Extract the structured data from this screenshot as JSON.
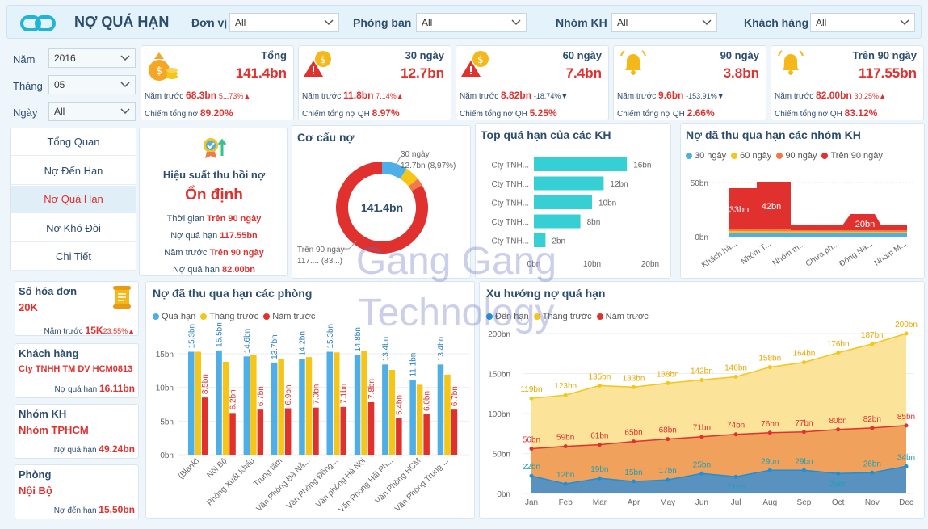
{
  "header": {
    "title": "NỢ QUÁ HẠN",
    "filters": [
      {
        "label": "Đơn vị",
        "value": "All"
      },
      {
        "label": "Phòng ban",
        "value": "All"
      },
      {
        "label": "Nhóm KH",
        "value": "All"
      },
      {
        "label": "Khách hàng",
        "value": "All"
      }
    ]
  },
  "side_filters": [
    {
      "label": "Năm",
      "value": "2016"
    },
    {
      "label": "Tháng",
      "value": "05"
    },
    {
      "label": "Ngày",
      "value": "All"
    }
  ],
  "nav": [
    "Tổng Quan",
    "Nợ Đến Hạn",
    "Nợ Quá Hạn",
    "Nợ Khó Đòi",
    "Chi Tiết"
  ],
  "kpis": [
    {
      "title": "Tổng",
      "value": "141.4bn",
      "prev_label": "Năm trước",
      "prev": "68.3bn",
      "pct": "51.73%",
      "dir": "▲",
      "share_label": "Chiếm tổng nợ",
      "share": "89.20%",
      "icon": "money-bag-icon"
    },
    {
      "title": "30 ngày",
      "value": "12.7bn",
      "prev_label": "Năm trước",
      "prev": "11.8bn",
      "pct": "7.14%",
      "dir": "▲",
      "share_label": "Chiếm tổng nợ QH",
      "share": "8.97%",
      "icon": "coin-warning-icon"
    },
    {
      "title": "60 ngày",
      "value": "7.4bn",
      "prev_label": "Năm trước",
      "prev": "8.82bn",
      "pct": "-18.74%",
      "dir": "▼",
      "share_label": "Chiếm tổng nợ QH",
      "share": "5.25%",
      "icon": "coin-warning-icon"
    },
    {
      "title": "90 ngày",
      "value": "3.8bn",
      "prev_label": "Năm trước",
      "prev": "9.6bn",
      "pct": "-153.91%",
      "dir": "▼",
      "share_label": "Chiếm tổng nợ QH",
      "share": "2.66%",
      "icon": "bell-icon"
    },
    {
      "title": "Trên 90 ngày",
      "value": "117.55bn",
      "prev_label": "Năm trước",
      "prev": "82.00bn",
      "pct": "30.25%",
      "dir": "▲",
      "share_label": "Chiếm tổng nợ QH",
      "share": "83.12%",
      "icon": "bell-icon"
    }
  ],
  "efficiency": {
    "title": "Hiệu suất thu hồi nợ",
    "status": "Ổn định",
    "rows": [
      {
        "label": "Thời gian",
        "value": "Trên 90 ngày"
      },
      {
        "label": "Nợ quá hạn",
        "value": "117.55bn"
      },
      {
        "label": "Năm trước",
        "value": "Trên 90 ngày"
      },
      {
        "label": "Nợ quá hạn",
        "value": "82.00bn"
      }
    ]
  },
  "cards": [
    {
      "title": "Số hóa đơn",
      "value": "20K",
      "sub_label": "Năm trước",
      "sub": "15K",
      "pct": "23.55%▲"
    },
    {
      "title": "Khách hàng",
      "value": "Cty TNHH TM DV HCM0813",
      "sub_label": "Nợ quá hạn",
      "sub": "16.11bn"
    },
    {
      "title": "Nhóm KH",
      "value": "Nhóm TPHCM",
      "sub_label": "Nợ quá hạn",
      "sub": "49.24bn"
    },
    {
      "title": "Phòng",
      "value": "Nội Bộ",
      "sub_label": "Nợ đến hạn",
      "sub": "15.50bn"
    }
  ],
  "watermark": [
    "Gang Gang",
    "Technology"
  ],
  "colors": {
    "blue": "#4daee8",
    "yellow": "#f5c518",
    "orange": "#f07a4a",
    "red": "#e0312e",
    "teal": "#36d0d4",
    "dark_blue": "#1f8fd6"
  },
  "chart_data": [
    {
      "id": "donut",
      "type": "pie",
      "title": "Cơ cấu nợ",
      "center_label": "141.4bn",
      "slices": [
        {
          "name": "30 ngày",
          "value": 12.7,
          "label": "12.7bn (8,97%)"
        },
        {
          "name": "60 ngày",
          "value": 7.4
        },
        {
          "name": "90 ngày",
          "value": 3.8
        },
        {
          "name": "Trên 90 ngày",
          "value": 117.55,
          "label": "117.... (83...)"
        }
      ]
    },
    {
      "id": "topkh",
      "type": "bar",
      "title": "Top quá hạn của các KH",
      "orientation": "horizontal",
      "categories": [
        "Cty TNH...",
        "Cty TNH...",
        "Cty TNH...",
        "Cty TNH...",
        "Cty TNH..."
      ],
      "values": [
        16,
        12,
        10,
        8,
        2
      ],
      "value_labels": [
        "16bn",
        "12bn",
        "10bn",
        "8bn",
        "2bn"
      ],
      "ticks": [
        "0bn",
        "10bn",
        "20bn"
      ],
      "xlim": [
        0,
        20
      ]
    },
    {
      "id": "groups",
      "type": "area",
      "title": "Nợ đã thu qua hạn các nhóm KH",
      "legend": [
        "30 ngày",
        "60 ngày",
        "90 ngày",
        "Trên 90 ngày"
      ],
      "categories": [
        "Khách hà...",
        "Nhóm T...",
        "Nhóm m...",
        "Chưa ph...",
        "Đông Na...",
        "Nhóm M..."
      ],
      "data_labels": [
        "33bn",
        "42bn",
        "20bn"
      ],
      "yticks": [
        "0bn",
        "50bn"
      ]
    },
    {
      "id": "depts",
      "type": "bar",
      "title": "Nợ đã thu qua hạn các phòng",
      "legend": [
        "Quá hạn",
        "Tháng trước",
        "Năm trước"
      ],
      "categories": [
        "(Blank)",
        "Nội Bộ",
        "Phòng Xuất Khẩu",
        "Trung tâm",
        "Văn Phòng Đà Nẵ...",
        "Văn Phòng Đồng...",
        "Văn phòng Hà Nội",
        "Văn Phòng Hải Ph...",
        "Văn Phòng HCM",
        "Văn Phòng Trung ..."
      ],
      "series": [
        {
          "name": "Quá hạn",
          "values": [
            15.3,
            15.5,
            14.6,
            13.7,
            14.2,
            15.3,
            14.8,
            13.4,
            11.1,
            13.4
          ],
          "labels": [
            "15.3bn",
            "15.5bn",
            "14.6bn",
            "13.7bn",
            "14.2bn",
            "15.3bn",
            "14.8bn",
            "13.4bn",
            "11.1bn",
            "13.4bn"
          ]
        },
        {
          "name": "Tháng trước",
          "values": [
            15.3,
            13.8,
            14.8,
            14.2,
            14.5,
            15.2,
            15.4,
            12.6,
            10.4,
            11.9
          ]
        },
        {
          "name": "Năm trước",
          "values": [
            8.5,
            6.2,
            6.7,
            6.9,
            7.0,
            7.1,
            7.8,
            5.4,
            6.0,
            6.7
          ],
          "labels": [
            "8.5bn",
            "6.2bn",
            "6.7bn",
            "6.9bn",
            "7.0bn",
            "7.1bn",
            "7.8bn",
            "5.4bn",
            "6.0bn",
            "6.7bn"
          ]
        }
      ],
      "yticks": [
        "0bn",
        "5bn",
        "10bn",
        "15bn"
      ],
      "ylim": [
        0,
        18
      ]
    },
    {
      "id": "trend",
      "type": "area",
      "title": "Xu hướng nợ quá hạn",
      "legend": [
        "Đến hạn",
        "Tháng trước",
        "Năm trước"
      ],
      "categories": [
        "Jan",
        "Feb",
        "Mar",
        "Apr",
        "May",
        "Jun",
        "Jul",
        "Aug",
        "Sep",
        "Oct",
        "Nov",
        "Dec"
      ],
      "series": [
        {
          "name": "Tháng trước",
          "values": [
            119,
            123,
            135,
            133,
            138,
            142,
            146,
            158,
            164,
            176,
            187,
            200
          ]
        },
        {
          "name": "Năm trước",
          "values": [
            56,
            59,
            61,
            65,
            68,
            71,
            74,
            76,
            77,
            80,
            82,
            85
          ]
        },
        {
          "name": "Đến hạn",
          "values": [
            22,
            12,
            19,
            15,
            17,
            25,
            21,
            29,
            29,
            25,
            26,
            34
          ]
        }
      ],
      "yticks": [
        "0bn",
        "50bn",
        "100bn",
        "150bn",
        "200bn"
      ],
      "ylim": [
        0,
        200
      ]
    }
  ]
}
